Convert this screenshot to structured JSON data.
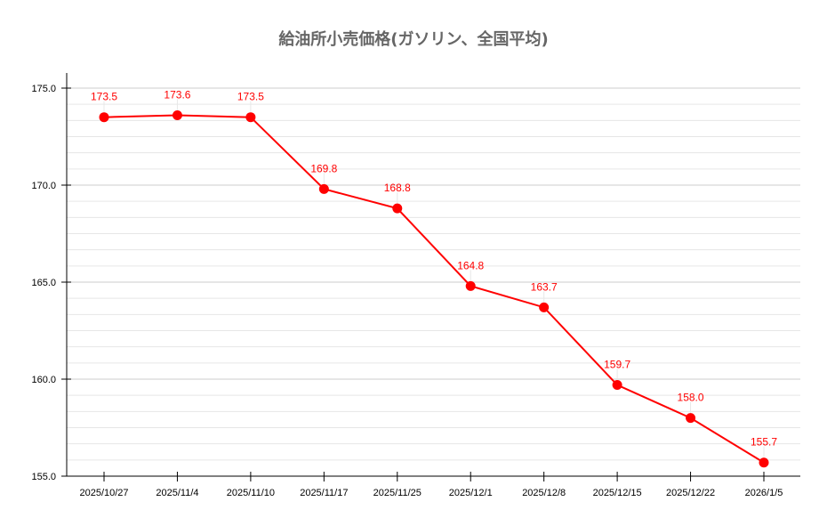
{
  "chart_data": {
    "type": "line",
    "title": "給油所小売価格(ガソリン、全国平均)",
    "xlabel": "",
    "ylabel": "",
    "categories": [
      "2025/10/27",
      "2025/11/4",
      "2025/11/10",
      "2025/11/17",
      "2025/11/25",
      "2025/12/1",
      "2025/12/8",
      "2025/12/15",
      "2025/12/22",
      "2026/1/5"
    ],
    "series": [
      {
        "name": "ガソリン全国平均",
        "color": "#ff0000",
        "values": [
          173.5,
          173.6,
          173.5,
          169.8,
          168.8,
          164.8,
          163.7,
          159.7,
          158.0,
          155.7
        ]
      }
    ],
    "data_labels": [
      "173.5",
      "173.6",
      "173.5",
      "169.8",
      "168.8",
      "164.8",
      "163.7",
      "159.7",
      "158.0",
      "155.7"
    ],
    "yticks": [
      "155.0",
      "160.0",
      "165.0",
      "170.0",
      "175.0"
    ],
    "ylim": [
      155,
      175.8
    ],
    "grid": true,
    "legend": "none"
  }
}
